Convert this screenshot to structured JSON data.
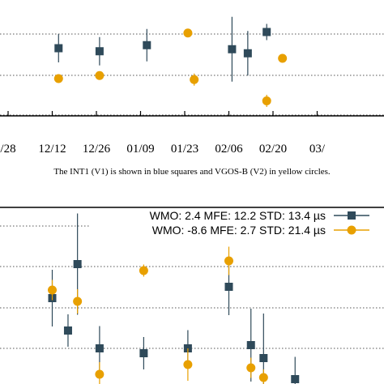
{
  "colors": {
    "series_a": "#2f4a5a",
    "series_b": "#e8a000",
    "axis": "#000000",
    "grid": "#555555"
  },
  "caption": "The INT1 (V1) is shown in blue squares and VGOS-B (V2) in yellow circles.",
  "chart_data": [
    {
      "type": "scatter",
      "title": "",
      "xlabel": "",
      "ylabel": "",
      "x_tick_labels": [
        "/28",
        "12/12",
        "12/26",
        "01/09",
        "01/23",
        "02/06",
        "02/20",
        "03/"
      ],
      "grid": "horizontal dashed",
      "legend": "none visible",
      "series": [
        {
          "marker": "square",
          "points": [
            {
              "x": "12/14",
              "y": 0.7,
              "err": 0.35
            },
            {
              "x": "12/27",
              "y": 0.85,
              "err": 0.35
            },
            {
              "x": "01/11",
              "y": 0.55,
              "err": 0.4
            },
            {
              "x": "02/07",
              "y": 0.75,
              "err": 0.8
            },
            {
              "x": "02/12",
              "y": 0.95,
              "err": 0.55
            },
            {
              "x": "02/18",
              "y": -0.1,
              "err": 0.2
            }
          ]
        },
        {
          "marker": "circle",
          "points": [
            {
              "x": "12/14",
              "y": 2.2,
              "err": 0.1
            },
            {
              "x": "12/27",
              "y": 2.05,
              "err": 0.1
            },
            {
              "x": "01/24",
              "y": -0.05,
              "err": 0.1
            },
            {
              "x": "01/26",
              "y": 2.25,
              "err": 0.15
            },
            {
              "x": "02/18",
              "y": 3.3,
              "err": 0.15
            },
            {
              "x": "02/23",
              "y": 1.2,
              "err": 0.1
            }
          ]
        }
      ]
    },
    {
      "type": "scatter",
      "title": "",
      "xlabel": "",
      "ylabel": "",
      "grid": "horizontal dashed",
      "legend": "top-right",
      "series": [
        {
          "name": "WMO: 2.4 MFE: 12.2 STD: 13.4 µs",
          "marker": "square",
          "points": [
            {
              "x": "12/12",
              "y": 4.2,
              "err": 0.7
            },
            {
              "x": "12/17",
              "y": 5.2,
              "err": 0.4
            },
            {
              "x": "12/20",
              "y": 3.15,
              "err": 1.25
            },
            {
              "x": "12/27",
              "y": 5.75,
              "err": 0.55
            },
            {
              "x": "01/10",
              "y": 5.9,
              "err": 0.4
            },
            {
              "x": "01/24",
              "y": 5.75,
              "err": 0.45
            },
            {
              "x": "02/06",
              "y": 3.85,
              "err": 0.7
            },
            {
              "x": "02/13",
              "y": 5.65,
              "err": 0.9
            },
            {
              "x": "02/17",
              "y": 6.05,
              "err": 1.1
            },
            {
              "x": "02/27",
              "y": 6.7,
              "err": 0.55
            }
          ]
        },
        {
          "name": "WMO: -8.6 MFE: 2.7 STD: 21.4 µs",
          "marker": "circle",
          "points": [
            {
              "x": "12/12",
              "y": 3.95,
              "err": 0.25
            },
            {
              "x": "12/20",
              "y": 4.3,
              "err": 0.3
            },
            {
              "x": "12/27",
              "y": 6.55,
              "err": 0.3
            },
            {
              "x": "01/10",
              "y": 3.35,
              "err": 0.15
            },
            {
              "x": "01/24",
              "y": 6.25,
              "err": 0.4
            },
            {
              "x": "02/06",
              "y": 3.05,
              "err": 0.35
            },
            {
              "x": "02/13",
              "y": 6.35,
              "err": 0.25
            },
            {
              "x": "02/17",
              "y": 6.65,
              "err": 0.2
            }
          ]
        }
      ]
    }
  ]
}
